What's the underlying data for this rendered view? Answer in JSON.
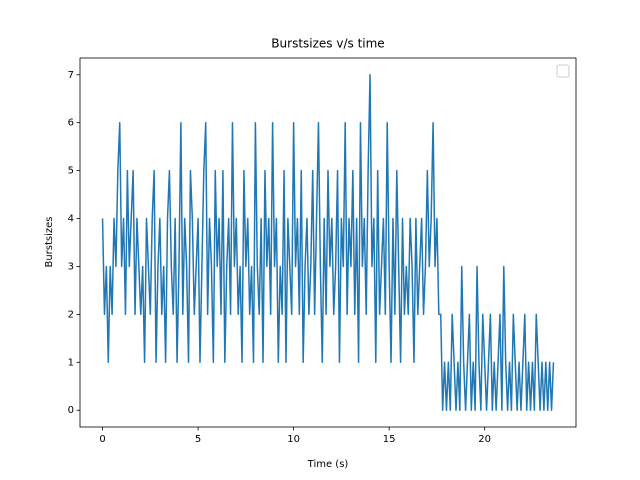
{
  "chart_data": {
    "type": "line",
    "title": "Burstsizes v/s time",
    "x_label": "Time (s)",
    "y_label": "Burstsizes",
    "xlim": [
      -1.18,
      24.78
    ],
    "ylim": [
      -0.35,
      7.35
    ],
    "xticks": [
      0,
      5,
      10,
      15,
      20
    ],
    "yticks": [
      0,
      1,
      2,
      3,
      4,
      5,
      6,
      7
    ],
    "x": [
      0,
      0.1,
      0.2,
      0.3,
      0.4,
      0.5,
      0.6,
      0.7,
      0.8,
      0.9,
      1,
      1.1,
      1.2,
      1.3,
      1.4,
      1.5,
      1.6,
      1.7,
      1.8,
      1.9,
      2,
      2.1,
      2.2,
      2.3,
      2.4,
      2.5,
      2.6,
      2.7,
      2.8,
      2.9,
      3,
      3.1,
      3.2,
      3.3,
      3.4,
      3.5,
      3.6,
      3.7,
      3.8,
      3.9,
      4,
      4.1,
      4.2,
      4.3,
      4.4,
      4.5,
      4.6,
      4.7,
      4.8,
      4.9,
      5,
      5.1,
      5.2,
      5.3,
      5.4,
      5.5,
      5.6,
      5.7,
      5.8,
      5.9,
      6,
      6.1,
      6.2,
      6.3,
      6.4,
      6.5,
      6.6,
      6.7,
      6.8,
      6.9,
      7,
      7.1,
      7.2,
      7.3,
      7.4,
      7.5,
      7.6,
      7.7,
      7.8,
      7.9,
      8,
      8.1,
      8.2,
      8.3,
      8.4,
      8.5,
      8.6,
      8.7,
      8.8,
      8.9,
      9,
      9.1,
      9.2,
      9.3,
      9.4,
      9.5,
      9.6,
      9.7,
      9.8,
      9.9,
      10,
      10.1,
      10.2,
      10.3,
      10.4,
      10.5,
      10.6,
      10.7,
      10.8,
      10.9,
      11,
      11.1,
      11.2,
      11.3,
      11.4,
      11.5,
      11.6,
      11.7,
      11.8,
      11.9,
      12,
      12.1,
      12.2,
      12.3,
      12.4,
      12.5,
      12.6,
      12.7,
      12.8,
      12.9,
      13,
      13.1,
      13.2,
      13.3,
      13.4,
      13.5,
      13.6,
      13.7,
      13.8,
      13.9,
      14,
      14.1,
      14.2,
      14.3,
      14.4,
      14.5,
      14.6,
      14.7,
      14.8,
      14.9,
      15,
      15.1,
      15.2,
      15.3,
      15.4,
      15.5,
      15.6,
      15.7,
      15.8,
      15.9,
      16,
      16.1,
      16.2,
      16.3,
      16.4,
      16.5,
      16.6,
      16.7,
      16.8,
      16.9,
      17,
      17.1,
      17.2,
      17.3,
      17.4,
      17.5,
      17.6,
      17.7,
      17.8,
      17.9,
      18,
      18.1,
      18.2,
      18.3,
      18.4,
      18.5,
      18.6,
      18.7,
      18.8,
      18.9,
      19,
      19.1,
      19.2,
      19.3,
      19.4,
      19.5,
      19.6,
      19.7,
      19.8,
      19.9,
      20,
      20.1,
      20.2,
      20.3,
      20.4,
      20.5,
      20.6,
      20.7,
      20.8,
      20.9,
      21,
      21.1,
      21.2,
      21.3,
      21.4,
      21.5,
      21.6,
      21.7,
      21.8,
      21.9,
      22,
      22.1,
      22.2,
      22.3,
      22.4,
      22.5,
      22.6,
      22.7,
      22.8,
      22.9,
      23,
      23.1,
      23.2,
      23.3,
      23.4,
      23.5,
      23.6
    ],
    "series": [
      {
        "color": "#1f77b4",
        "values": [
          4,
          2,
          3,
          1,
          3,
          2,
          4,
          3,
          5,
          6,
          3,
          4,
          2,
          5,
          3,
          4,
          5,
          2,
          4,
          3,
          2,
          3,
          1,
          4,
          3,
          2,
          4,
          5,
          1,
          3,
          4,
          2,
          3,
          1,
          4,
          5,
          3,
          2,
          4,
          1,
          3,
          6,
          2,
          4,
          3,
          1,
          5,
          4,
          2,
          3,
          4,
          1,
          3,
          5,
          6,
          2,
          4,
          3,
          1,
          5,
          3,
          4,
          2,
          5,
          1,
          3,
          4,
          2,
          6,
          3,
          4,
          2,
          3,
          1,
          5,
          3,
          4,
          2,
          3,
          1,
          6,
          3,
          2,
          4,
          1,
          5,
          3,
          4,
          2,
          6,
          3,
          4,
          1,
          3,
          2,
          5,
          1,
          4,
          3,
          2,
          6,
          3,
          4,
          2,
          5,
          1,
          3,
          4,
          2,
          3,
          5,
          2,
          4,
          6,
          3,
          1,
          4,
          2,
          5,
          3,
          4,
          2,
          3,
          5,
          1,
          4,
          3,
          6,
          2,
          4,
          3,
          5,
          2,
          4,
          1,
          6,
          3,
          4,
          2,
          5,
          7,
          3,
          4,
          1,
          5,
          2,
          3,
          4,
          2,
          6,
          3,
          1,
          4,
          2,
          5,
          3,
          1,
          4,
          2,
          3,
          2,
          4,
          3,
          1,
          4,
          2,
          3,
          4,
          2,
          3,
          5,
          3,
          4,
          6,
          3,
          4,
          2,
          2,
          0,
          1,
          0,
          1,
          0,
          2,
          1,
          0,
          1,
          0,
          3,
          1,
          0,
          1,
          2,
          0,
          1,
          0,
          3,
          1,
          0,
          2,
          1,
          0,
          1,
          2,
          0,
          1,
          0,
          1,
          2,
          0,
          3,
          1,
          0,
          1,
          0,
          2,
          1,
          0,
          1,
          0,
          1,
          2,
          0,
          1,
          0,
          1,
          0,
          2,
          1,
          0,
          1,
          0,
          1,
          0,
          1,
          0,
          1
        ]
      }
    ]
  }
}
